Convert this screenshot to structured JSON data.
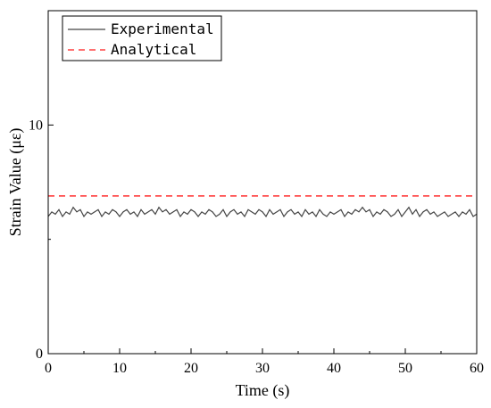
{
  "chart_data": {
    "type": "line",
    "xlabel": "Time (s)",
    "ylabel": "Strain Value (με)",
    "xlim": [
      0,
      60
    ],
    "ylim": [
      0,
      15
    ],
    "xticks": [
      "0",
      "10",
      "20",
      "30",
      "40",
      "50",
      "60"
    ],
    "yticks": [
      "0",
      "10"
    ],
    "grid": false,
    "legend_position": "top-left",
    "series": [
      {
        "name": "Experimental",
        "color": "#444444",
        "style": "solid",
        "x": [
          0,
          0.5,
          1,
          1.5,
          2,
          2.5,
          3,
          3.5,
          4,
          4.5,
          5,
          5.5,
          6,
          6.5,
          7,
          7.5,
          8,
          8.5,
          9,
          9.5,
          10,
          10.5,
          11,
          11.5,
          12,
          12.5,
          13,
          13.5,
          14,
          14.5,
          15,
          15.5,
          16,
          16.5,
          17,
          17.5,
          18,
          18.5,
          19,
          19.5,
          20,
          20.5,
          21,
          21.5,
          22,
          22.5,
          23,
          23.5,
          24,
          24.5,
          25,
          25.5,
          26,
          26.5,
          27,
          27.5,
          28,
          28.5,
          29,
          29.5,
          30,
          30.5,
          31,
          31.5,
          32,
          32.5,
          33,
          33.5,
          34,
          34.5,
          35,
          35.5,
          36,
          36.5,
          37,
          37.5,
          38,
          38.5,
          39,
          39.5,
          40,
          40.5,
          41,
          41.5,
          42,
          42.5,
          43,
          43.5,
          44,
          44.5,
          45,
          45.5,
          46,
          46.5,
          47,
          47.5,
          48,
          48.5,
          49,
          49.5,
          50,
          50.5,
          51,
          51.5,
          52,
          52.5,
          53,
          53.5,
          54,
          54.5,
          55,
          55.5,
          56,
          56.5,
          57,
          57.5,
          58,
          58.5,
          59,
          59.5,
          60
        ],
        "y": [
          6.0,
          6.2,
          6.1,
          6.3,
          6.0,
          6.2,
          6.1,
          6.4,
          6.2,
          6.3,
          6.0,
          6.2,
          6.1,
          6.2,
          6.3,
          6.0,
          6.2,
          6.1,
          6.3,
          6.2,
          6.0,
          6.2,
          6.3,
          6.1,
          6.2,
          6.0,
          6.3,
          6.1,
          6.2,
          6.3,
          6.1,
          6.4,
          6.2,
          6.3,
          6.1,
          6.2,
          6.3,
          6.0,
          6.2,
          6.1,
          6.3,
          6.2,
          6.0,
          6.2,
          6.1,
          6.3,
          6.2,
          6.0,
          6.1,
          6.3,
          6.0,
          6.2,
          6.3,
          6.1,
          6.2,
          6.0,
          6.3,
          6.2,
          6.1,
          6.3,
          6.2,
          6.0,
          6.3,
          6.1,
          6.2,
          6.3,
          6.0,
          6.2,
          6.3,
          6.1,
          6.2,
          6.0,
          6.3,
          6.1,
          6.2,
          6.0,
          6.3,
          6.1,
          6.0,
          6.2,
          6.1,
          6.2,
          6.3,
          6.0,
          6.2,
          6.1,
          6.3,
          6.2,
          6.4,
          6.2,
          6.3,
          6.0,
          6.2,
          6.1,
          6.3,
          6.2,
          6.0,
          6.1,
          6.3,
          6.0,
          6.2,
          6.4,
          6.1,
          6.3,
          6.0,
          6.2,
          6.3,
          6.1,
          6.2,
          6.0,
          6.1,
          6.2,
          6.0,
          6.1,
          6.2,
          6.0,
          6.2,
          6.1,
          6.3,
          6.0,
          6.1
        ]
      },
      {
        "name": "Analytical",
        "color": "#ff4040",
        "style": "dashed",
        "x": [
          0,
          60
        ],
        "y": [
          6.9,
          6.9
        ]
      }
    ]
  }
}
